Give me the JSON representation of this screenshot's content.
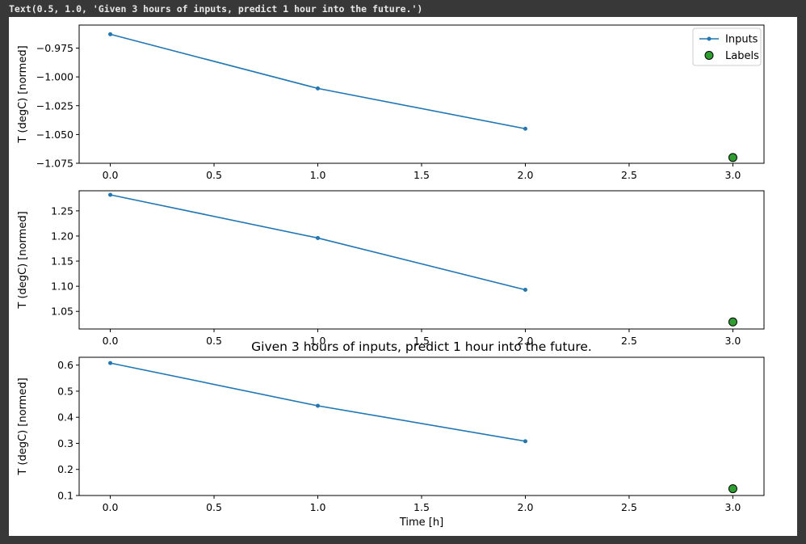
{
  "output_text": "Text(0.5, 1.0, 'Given 3 hours of inputs, predict 1 hour into the future.')",
  "colors": {
    "inputs_line": "#1f77b4",
    "labels_fill": "#2ca02c",
    "labels_edge": "#000000",
    "background_dark": "#383838",
    "figure_bg": "#ffffff"
  },
  "chart_data": [
    {
      "type": "line",
      "ylabel": "T (degC) [normed]",
      "xlabel": "",
      "title": "",
      "xlim": [
        -0.15,
        3.15
      ],
      "ylim": [
        -1.075,
        -0.955
      ],
      "xticks": [
        "0.0",
        "0.5",
        "1.0",
        "1.5",
        "2.0",
        "2.5",
        "3.0"
      ],
      "yticks": [
        "−0.975",
        "−1.000",
        "−1.025",
        "−1.050",
        "−1.075"
      ],
      "ytick_values": [
        -0.975,
        -1.0,
        -1.025,
        -1.05,
        -1.075
      ],
      "legend_position": "upper right",
      "legend": [
        "Inputs",
        "Labels"
      ],
      "series": [
        {
          "name": "Inputs",
          "kind": "line",
          "x": [
            0,
            1,
            2
          ],
          "y": [
            -0.963,
            -1.01,
            -1.045
          ]
        },
        {
          "name": "Labels",
          "kind": "scatter",
          "x": [
            3
          ],
          "y": [
            -1.07
          ]
        }
      ]
    },
    {
      "type": "line",
      "ylabel": "T (degC) [normed]",
      "xlabel": "",
      "title": "",
      "xlim": [
        -0.15,
        3.15
      ],
      "ylim": [
        1.015,
        1.29
      ],
      "xticks": [
        "0.0",
        "0.5",
        "1.0",
        "1.5",
        "2.0",
        "2.5",
        "3.0"
      ],
      "yticks": [
        "1.25",
        "1.20",
        "1.15",
        "1.10",
        "1.05"
      ],
      "ytick_values": [
        1.25,
        1.2,
        1.15,
        1.1,
        1.05
      ],
      "series": [
        {
          "name": "Inputs",
          "kind": "line",
          "x": [
            0,
            1,
            2
          ],
          "y": [
            1.282,
            1.196,
            1.093
          ]
        },
        {
          "name": "Labels",
          "kind": "scatter",
          "x": [
            3
          ],
          "y": [
            1.029
          ]
        }
      ]
    },
    {
      "type": "line",
      "ylabel": "T (degC) [normed]",
      "xlabel": "Time [h]",
      "title": "Given 3 hours of inputs, predict 1 hour into the future.",
      "xlim": [
        -0.15,
        3.15
      ],
      "ylim": [
        0.1,
        0.63
      ],
      "xticks": [
        "0.0",
        "0.5",
        "1.0",
        "1.5",
        "2.0",
        "2.5",
        "3.0"
      ],
      "yticks": [
        "0.6",
        "0.5",
        "0.4",
        "0.3",
        "0.2",
        "0.1"
      ],
      "ytick_values": [
        0.6,
        0.5,
        0.4,
        0.3,
        0.2,
        0.1
      ],
      "series": [
        {
          "name": "Inputs",
          "kind": "line",
          "x": [
            0,
            1,
            2
          ],
          "y": [
            0.608,
            0.444,
            0.308
          ]
        },
        {
          "name": "Labels",
          "kind": "scatter",
          "x": [
            3
          ],
          "y": [
            0.126
          ]
        }
      ]
    }
  ]
}
